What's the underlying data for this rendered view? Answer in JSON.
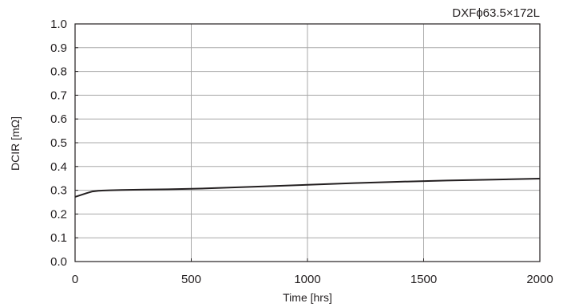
{
  "chart_data": {
    "type": "line",
    "title": "DXFϕ63.5×172L",
    "xlabel": "Time [hrs]",
    "ylabel": "DCIR [mΩ]",
    "xlim": [
      0,
      2000
    ],
    "ylim": [
      0,
      1.0
    ],
    "xticks": [
      "0",
      "500",
      "1000",
      "1500",
      "2000"
    ],
    "yticks": [
      "0.0",
      "0.1",
      "0.2",
      "0.3",
      "0.4",
      "0.5",
      "0.6",
      "0.7",
      "0.8",
      "0.9",
      "1.0"
    ],
    "grid": true,
    "series": [
      {
        "x": [
          0,
          25,
          50,
          75,
          100,
          150,
          200,
          300,
          400,
          500,
          600,
          800,
          1000,
          1200,
          1400,
          1600,
          1800,
          2000
        ],
        "y": [
          0.272,
          0.28,
          0.288,
          0.295,
          0.298,
          0.3,
          0.301,
          0.303,
          0.304,
          0.306,
          0.309,
          0.316,
          0.323,
          0.33,
          0.336,
          0.341,
          0.345,
          0.349
        ]
      }
    ],
    "colors": {
      "line": "#231f20",
      "grid": "#a8a8a8",
      "axis": "#231f20"
    }
  }
}
